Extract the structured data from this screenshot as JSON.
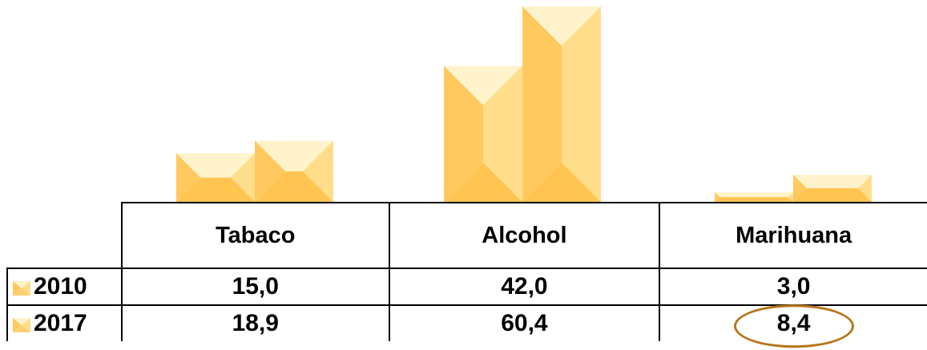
{
  "chart_data": {
    "type": "bar",
    "categories": [
      "Tabaco",
      "Alcohol",
      "Marihuana"
    ],
    "series": [
      {
        "name": "2010",
        "values": [
          15.0,
          42.0,
          3.0
        ],
        "labels": [
          "15,0",
          "42,0",
          "3,0"
        ]
      },
      {
        "name": "2017",
        "values": [
          18.9,
          60.4,
          8.4
        ],
        "labels": [
          "18,9",
          "60,4",
          "8,4"
        ]
      }
    ],
    "ylim": [
      0,
      65
    ],
    "grid": false,
    "legend": "data-table",
    "highlight": {
      "series": "2017",
      "category": "Marihuana"
    },
    "colors": {
      "bar_light": "#fff3cc",
      "bar_mid": "#ffdd8a",
      "bar_dark": "#ffc960",
      "bar_shadow": "#ffc550",
      "highlight": "#b8741a"
    }
  }
}
